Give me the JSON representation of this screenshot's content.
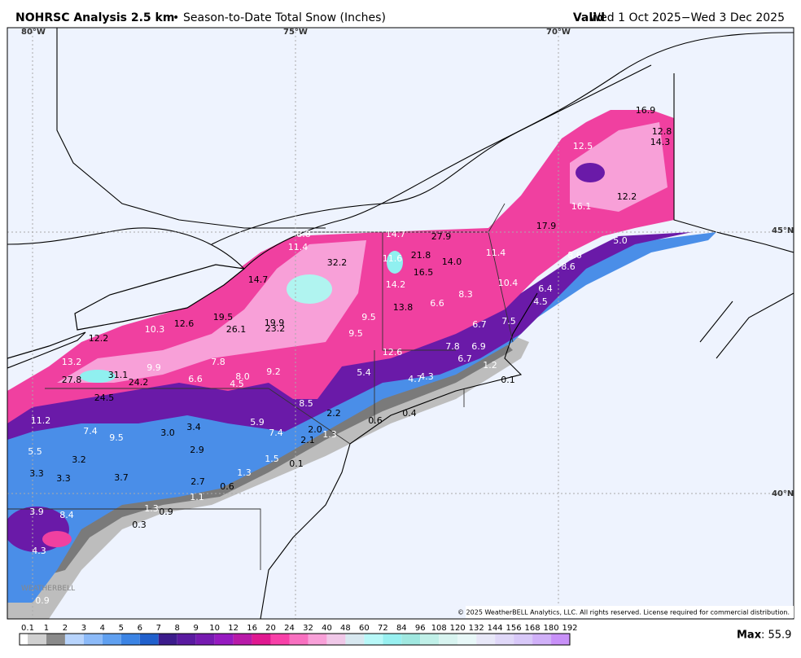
{
  "header": {
    "title": "NOHRSC Analysis 2.5 km",
    "bullet": "•",
    "subtitle": "Season-to-Date Total Snow (Inches)",
    "valid": "Valid",
    "period": "Wed 1 Oct 2025−Wed 3 Dec 2025"
  },
  "map": {
    "lon_labels": [
      "80°W",
      "75°W",
      "70°W"
    ],
    "lat_labels": [
      "45°N",
      "40°N"
    ],
    "values": [
      "16.9",
      "12.8",
      "14.3",
      "12.5",
      "12.2",
      "16.1",
      "17.9",
      "5.0",
      "8.6",
      "8.6",
      "11.4",
      "10.4",
      "6.4",
      "4.5",
      "7.5",
      "6.7",
      "6.9",
      "6.7",
      "7.8",
      "8.3",
      "6.6",
      "14.0",
      "16.5",
      "21.8",
      "27.9",
      "14.7",
      "11.6",
      "14.2",
      "13.8",
      "9.5",
      "9.5",
      "12.6",
      "5.4",
      "4.7",
      "4.3",
      "8.8",
      "11.4",
      "32.2",
      "14.7",
      "19.5",
      "26.1",
      "19.9",
      "23.2",
      "12.6",
      "10.3",
      "12.2",
      "13.2",
      "27.8",
      "31.1",
      "24.2",
      "9.9",
      "7.8",
      "6.6",
      "8.0",
      "4.5",
      "9.2",
      "24.5",
      "8.5",
      "2.2",
      "0.6",
      "0.4",
      "11.2",
      "7.4",
      "9.5",
      "3.0",
      "3.4",
      "5.9",
      "7.4",
      "2.0",
      "1.3",
      "2.1",
      "2.9",
      "5.5",
      "3.2",
      "1.5",
      "0.1",
      "3.3",
      "3.3",
      "3.7",
      "2.7",
      "1.3",
      "0.6",
      "1.1",
      "1.3",
      "0.9",
      "3.9",
      "8.4",
      "0.3",
      "4.3",
      "0.9",
      "1.2",
      "0.1"
    ],
    "copyright": "© 2025 WeatherBELL Analytics, LLC. All rights reserved. License required for commercial distribution.",
    "watermark": "WEATHERBELL"
  },
  "colorbar": {
    "ticks": [
      0.1,
      1,
      2,
      3,
      4,
      5,
      6,
      7,
      8,
      9,
      10,
      12,
      16,
      20,
      24,
      32,
      40,
      48,
      60,
      72,
      84,
      96,
      108,
      120,
      132,
      144,
      156,
      168,
      180,
      192
    ],
    "colors": [
      "#ffffff",
      "#d0d0d0",
      "#8a8a8a",
      "#b8d4fc",
      "#8cbaf8",
      "#60a0f0",
      "#3c84e4",
      "#2060cc",
      "#3c1c8c",
      "#5a1aa0",
      "#761ab0",
      "#961ac0",
      "#b81aa8",
      "#e01890",
      "#f840a8",
      "#f870c0",
      "#f8a0d8",
      "#f0c8e8",
      "#d8e8f0",
      "#b8f8f8",
      "#98f0f0",
      "#a0e8e0",
      "#c0f0e8",
      "#d8f4f0",
      "#e8f8f8",
      "#e8e8f8",
      "#e0d8f8",
      "#d8c8f8",
      "#d0b0f8",
      "#c890f8"
    ]
  },
  "max": {
    "label": "Max",
    "value": ": 55.9"
  }
}
